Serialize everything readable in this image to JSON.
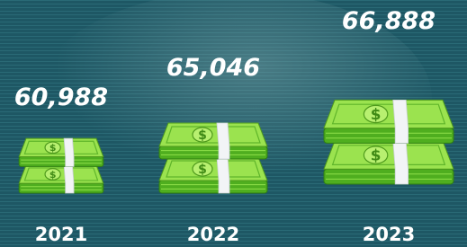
{
  "items": [
    {
      "value": "60,988",
      "year": "2021"
    },
    {
      "value": "65,046",
      "year": "2022"
    },
    {
      "value": "66,888",
      "year": "2023"
    }
  ]
}
